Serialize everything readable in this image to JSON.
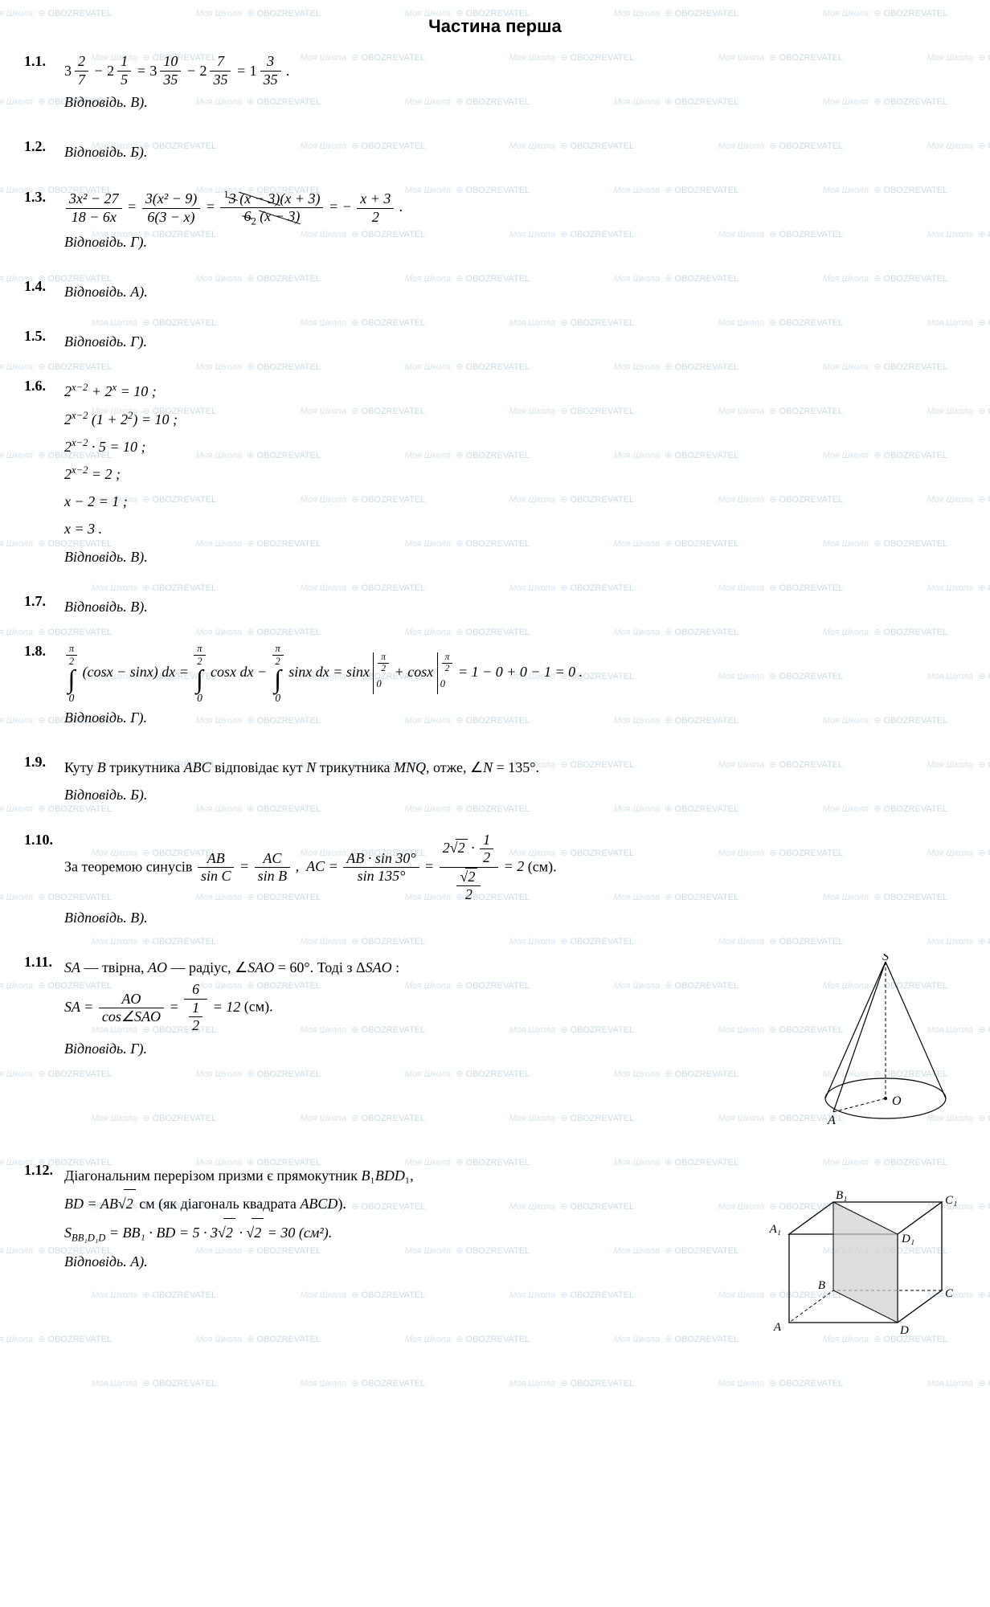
{
  "title": "Частина перша",
  "watermark_text": "Моя Школа ⊕ OBOZREVATEL",
  "problems": {
    "p1_1": {
      "num": "1.1.",
      "answer": "Відповідь. В)."
    },
    "p1_2": {
      "num": "1.2.",
      "answer": "Відповідь. Б)."
    },
    "p1_3": {
      "num": "1.3.",
      "answer": "Відповідь. Г)."
    },
    "p1_4": {
      "num": "1.4.",
      "answer": "Відповідь. А)."
    },
    "p1_5": {
      "num": "1.5.",
      "answer": "Відповідь. Г)."
    },
    "p1_6": {
      "num": "1.6.",
      "line1": "2ˣ⁻² + 2ˣ = 10 ;",
      "line2": "2ˣ⁻² (1 + 2²) = 10 ;",
      "line3": "2ˣ⁻² · 5 = 10 ;",
      "line4": "2ˣ⁻² = 2 ;",
      "line5": "x − 2 = 1 ;",
      "line6": "x = 3 .",
      "answer": "Відповідь. В)."
    },
    "p1_7": {
      "num": "1.7.",
      "answer": "Відповідь. В)."
    },
    "p1_8": {
      "num": "1.8.",
      "answer": "Відповідь. Г)."
    },
    "p1_9": {
      "num": "1.9.",
      "text": "Куту B трикутника ABC відповідає кут N трикутника MNQ, отже, ∠N = 135°.",
      "answer": "Відповідь. Б)."
    },
    "p1_10": {
      "num": "1.10.",
      "pre": "За теоремою синусів ",
      "post": " (см).",
      "answer": "Відповідь. В)."
    },
    "p1_11": {
      "num": "1.11.",
      "text": "SA — твірна, AO — радіус, ∠SAO = 60°. Тоді з ΔSAO :",
      "post": " (см).",
      "answer": "Відповідь. Г).",
      "fig_labels": {
        "S": "S",
        "A": "A",
        "O": "O"
      }
    },
    "p1_12": {
      "num": "1.12.",
      "l1": "Діагональним перерізом призми є прямокутник B₁BDD₁,",
      "l2_pre": "BD = AB",
      "l2_post": " см (як діагональ квадрата ABCD).",
      "l3": "S_BB₁D₁D = BB₁ · BD = 5 · 3√2 · √2 = 30 (см²).",
      "answer": "Відповідь. А).",
      "fig_labels": {
        "A": "A",
        "B": "B",
        "C": "C",
        "D": "D",
        "A1": "A₁",
        "B1": "B₁",
        "C1": "C₁",
        "D1": "D₁"
      }
    }
  },
  "colors": {
    "watermark": "#d5e5ef",
    "text": "#000000",
    "bg": "#ffffff",
    "shade": "#d0d0d0"
  }
}
